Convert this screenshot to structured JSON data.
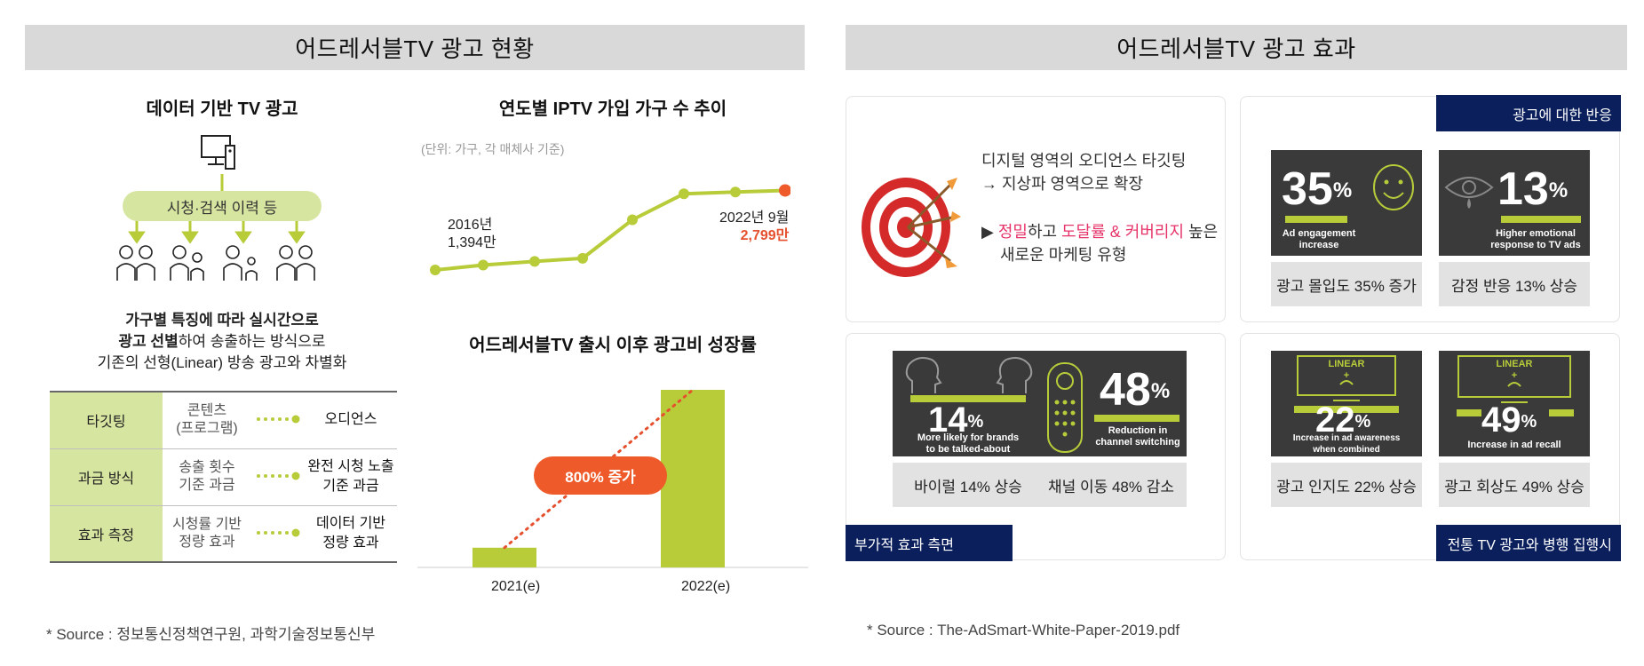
{
  "left": {
    "header": "어드레서블TV 광고 현황",
    "data_tv": {
      "title": "데이터 기반 TV 광고",
      "pill": "시청·검색 이력 등",
      "desc_line1": "가구별 특징에 따라 실시간으로",
      "desc_line2_bold": "광고 선별",
      "desc_line2_rest": "하여 송출하는 방식으로",
      "desc_line3": "기존의 선형(Linear) 방송 광고와 차별화"
    },
    "table": [
      {
        "head": "타깃팅",
        "old": [
          "콘텐츠",
          "(프로그램)"
        ],
        "new": [
          "오디언스"
        ]
      },
      {
        "head": "과금 방식",
        "old": [
          "송출 횟수",
          "기준 과금"
        ],
        "new": [
          "완전 시청 노출",
          "기준 과금"
        ]
      },
      {
        "head": "효과 측정",
        "old": [
          "시청률 기반",
          "정량 효과"
        ],
        "new": [
          "데이터 기반",
          "정량 효과"
        ]
      }
    ],
    "iptv_title": "연도별 IPTV 가입 가구 수 추이",
    "unit_note": "(단위: 가구, 각 매체사 기준)",
    "iptv_start": {
      "line1": "2016년",
      "line2": "1,394만"
    },
    "iptv_end": {
      "line1": "2022년 9월",
      "line2": "2,799만"
    },
    "growth_title": "어드레서블TV 출시 이후 광고비 성장률",
    "growth_badge": "800% 증가",
    "source": "* Source : 정보통신정책연구원, 과학기술정보통신부"
  },
  "chart_data": [
    {
      "type": "line",
      "title": "연도별 IPTV 가입 가구 수 추이",
      "unit": "(단위: 가구, 각 매체사 기준)",
      "series": [
        {
          "values": [
            1394,
            1480,
            1545,
            1600,
            2280,
            2740,
            2770,
            2799
          ]
        }
      ],
      "annotations": [
        "2016년 1,394만",
        "2022년 9월 2,799만"
      ]
    },
    {
      "type": "bar",
      "title": "어드레서블TV 출시 이후 광고비 성장률",
      "categories": [
        "2021(e)",
        "2022(e)"
      ],
      "values": [
        1,
        9
      ],
      "annotation": "800% 증가"
    }
  ],
  "right": {
    "header": "어드레서블TV 광고 효과",
    "target": {
      "line1": "디지털 영역의 오디언스 타깃팅",
      "line2": "→ 지상파 영역으로 확장",
      "bullet": "▶",
      "w1": "정밀",
      "w2": "하고 ",
      "w3": "도달률 & 커버리지",
      "w4": " 높은",
      "line4": "새로운 마케팅 유형"
    },
    "tag_response": "광고에 대한 반응",
    "tag_addon": "부가적 효과 측면",
    "tag_linear": "전통 TV 광고와 병행 집행시",
    "tiles": {
      "engagement": {
        "big": "35",
        "pct": "%",
        "small": "Ad engagement\nincrease",
        "caption": "광고 몰입도 35% 증가"
      },
      "emotion": {
        "big": "13",
        "pct": "%",
        "small": "Higher emotional\nresponse to TV ads",
        "caption": "감정 반응 13% 상승"
      },
      "viral": {
        "big": "14",
        "pct": "%",
        "small": "More likely for brands\nto be talked-about",
        "caption": "바이럴 14% 상승"
      },
      "channel": {
        "big": "48",
        "pct": "%",
        "small": "Reduction in\nchannel switching",
        "caption": "채널 이동 48% 감소"
      },
      "awareness": {
        "linear": "LINEAR",
        "plus": "+",
        "big": "22",
        "pct": "%",
        "small": "Increase in ad awareness\nwhen combined",
        "caption": "광고 인지도 22% 상승"
      },
      "recall": {
        "linear": "LINEAR",
        "plus": "+",
        "big": "49",
        "pct": "%",
        "small": "Increase in ad recall",
        "caption": "광고 회상도 49% 상승"
      }
    },
    "source": "* Source : The-AdSmart-White-Paper-2019.pdf"
  }
}
